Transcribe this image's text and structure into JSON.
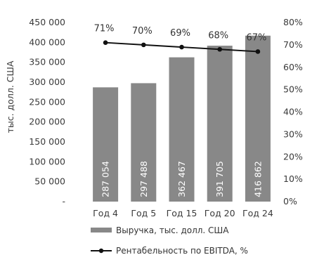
{
  "chart_data": {
    "type": "bar",
    "categories": [
      "Год 4",
      "Год 5",
      "Год 15",
      "Год 20",
      "Год 24"
    ],
    "series": [
      {
        "name": "Выручка, тыс. долл. США",
        "kind": "bar",
        "axis": "left",
        "values": [
          287054,
          297488,
          362467,
          391705,
          416862
        ],
        "labels": [
          "287 054",
          "297 488",
          "362 467",
          "391 705",
          "416 862"
        ],
        "color": "#888888"
      },
      {
        "name": "Рентабельность по EBITDA, %",
        "kind": "line",
        "axis": "right",
        "values": [
          71,
          70,
          69,
          68,
          67
        ],
        "labels": [
          "71%",
          "70%",
          "69%",
          "68%",
          "67%"
        ],
        "color": "#111111"
      }
    ],
    "ylabel": "тыс. долл. США",
    "ylim": [
      0,
      450000
    ],
    "y_ticks": [
      "-",
      "50 000",
      "100 000",
      "150 000",
      "200 000",
      "250 000",
      "300 000",
      "350 000",
      "400 000",
      "450 000"
    ],
    "y2lim": [
      0,
      80
    ],
    "y2_ticks": [
      "0%",
      "10%",
      "20%",
      "30%",
      "40%",
      "50%",
      "60%",
      "70%",
      "80%"
    ],
    "grid": false,
    "legend": "bottom"
  }
}
